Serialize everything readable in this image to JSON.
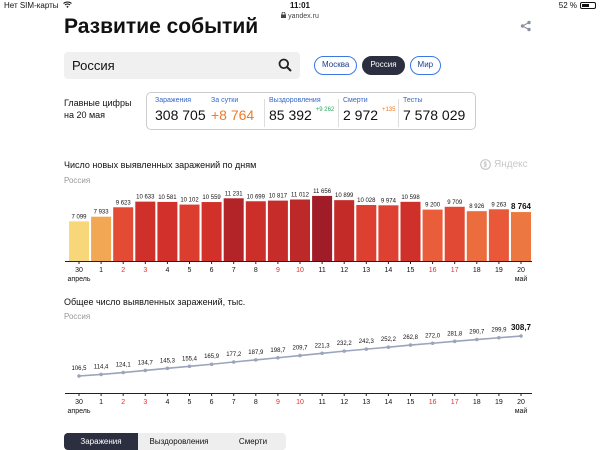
{
  "status_bar": {
    "carrier": "Нет SIM-карты",
    "time": "11:01",
    "battery": "52 %",
    "battery_level": 0.52
  },
  "browser": {
    "url": "yandex.ru"
  },
  "page": {
    "title": "Развитие событий"
  },
  "search": {
    "value": "Россия"
  },
  "region_chips": [
    {
      "label": "Москва",
      "active": false
    },
    {
      "label": "Россия",
      "active": true
    },
    {
      "label": "Мир",
      "active": false
    }
  ],
  "main_figures": {
    "label_line1": "Главные цифры",
    "label_line2": "на 20 мая",
    "items": [
      {
        "label": "Заражения",
        "value": "308 705",
        "delta": "",
        "value_color": "#111111"
      },
      {
        "label": "За сутки",
        "value": "+8 764",
        "delta": "",
        "value_color": "#f07a28"
      },
      {
        "label": "Выздоровления",
        "value": "85 392",
        "delta": "+9 262",
        "delta_color": "#27a85a",
        "value_color": "#111111"
      },
      {
        "label": "Смерти",
        "value": "2 972",
        "delta": "+135",
        "delta_color": "#f07a28",
        "value_color": "#111111"
      },
      {
        "label": "Тесты",
        "value": "7 578 029",
        "delta": "",
        "value_color": "#111111"
      }
    ]
  },
  "watermark": "Яндекс",
  "chart_data": [
    {
      "type": "bar",
      "title": "Число новых выявленных заражений по дням",
      "subtitle": "Россия",
      "categories": [
        "30",
        "1",
        "2",
        "3",
        "4",
        "5",
        "6",
        "7",
        "8",
        "9",
        "10",
        "11",
        "12",
        "13",
        "14",
        "15",
        "16",
        "17",
        "18",
        "19",
        "20"
      ],
      "category_month_first": "апрель",
      "category_month_last": "май",
      "holiday_categories": [
        "2",
        "3",
        "9",
        "10",
        "16",
        "17"
      ],
      "values": [
        7099,
        7933,
        9623,
        10633,
        10581,
        10102,
        10559,
        11231,
        10699,
        10817,
        11012,
        11656,
        10899,
        10028,
        9974,
        10598,
        9200,
        9709,
        8926,
        9263,
        8764
      ],
      "value_labels": [
        "7 099",
        "7 933",
        "9 623",
        "10 633",
        "10 581",
        "10 102",
        "10 559",
        "11 231",
        "10 699",
        "10 817",
        "11 012",
        "11 656",
        "10 899",
        "10 028",
        "9 974",
        "10 598",
        "9 200",
        "9 709",
        "8 926",
        "9 263",
        "8 764"
      ],
      "ylim": [
        0,
        12000
      ]
    },
    {
      "type": "line",
      "title": "Общее число выявленных заражений, тыс.",
      "subtitle": "Россия",
      "categories": [
        "30",
        "1",
        "2",
        "3",
        "4",
        "5",
        "6",
        "7",
        "8",
        "9",
        "10",
        "11",
        "12",
        "13",
        "14",
        "15",
        "16",
        "17",
        "18",
        "19",
        "20"
      ],
      "category_month_first": "апрель",
      "category_month_last": "май",
      "holiday_categories": [
        "2",
        "3",
        "9",
        "10",
        "16",
        "17"
      ],
      "values": [
        106.5,
        114.4,
        124.1,
        134.7,
        145.3,
        155.4,
        165.9,
        177.2,
        187.9,
        198.7,
        209.7,
        221.3,
        232.2,
        242.3,
        252.2,
        262.8,
        272.0,
        281.8,
        290.7,
        299.9,
        308.7
      ],
      "value_labels": [
        "106,5",
        "114,4",
        "124,1",
        "134,7",
        "145,3",
        "155,4",
        "165,9",
        "177,2",
        "187,9",
        "198,7",
        "209,7",
        "221,3",
        "232,2",
        "242,3",
        "252,2",
        "262,8",
        "272,0",
        "281,8",
        "290,7",
        "299,9",
        "308,7"
      ],
      "line_color": "#9aa4bb"
    }
  ],
  "bottom_tabs": [
    {
      "label": "Заражения",
      "active": true
    },
    {
      "label": "Выздоровления",
      "active": false
    },
    {
      "label": "Смерти",
      "active": false
    }
  ]
}
